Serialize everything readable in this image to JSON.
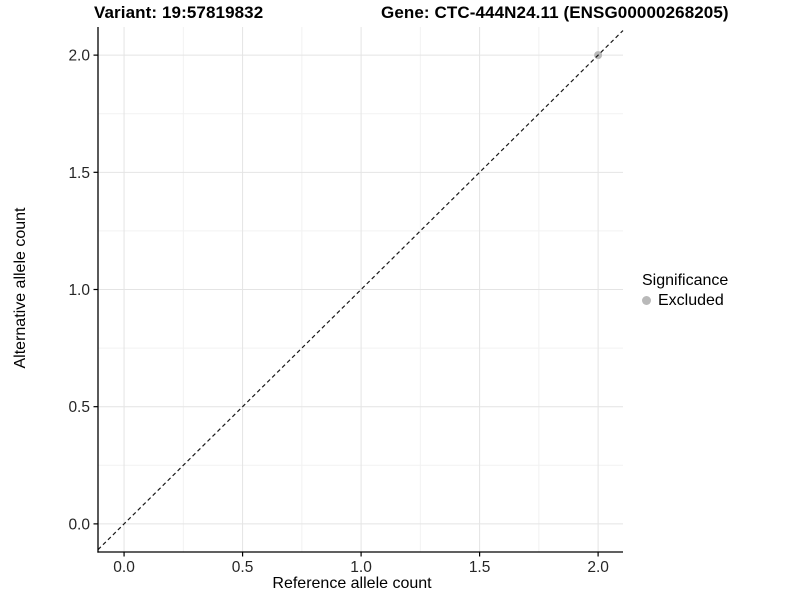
{
  "chart_data": {
    "type": "scatter",
    "title_left": "Variant: 19:57819832",
    "title_right": "Gene: CTC-444N24.11 (ENSG00000268205)",
    "xlabel": "Reference allele count",
    "ylabel": "Alternative allele count",
    "xlim": [
      -0.11,
      2.105
    ],
    "ylim": [
      -0.12,
      2.12
    ],
    "x_ticks": [
      {
        "value": 0.0,
        "label": "0.0"
      },
      {
        "value": 0.5,
        "label": "0.5"
      },
      {
        "value": 1.0,
        "label": "1.0"
      },
      {
        "value": 1.5,
        "label": "1.5"
      },
      {
        "value": 2.0,
        "label": "2.0"
      }
    ],
    "y_ticks": [
      {
        "value": 0.0,
        "label": "0.0"
      },
      {
        "value": 0.5,
        "label": "0.5"
      },
      {
        "value": 1.0,
        "label": "1.0"
      },
      {
        "value": 1.5,
        "label": "1.5"
      },
      {
        "value": 2.0,
        "label": "2.0"
      }
    ],
    "x_minor": [
      0.25,
      0.75,
      1.25,
      1.75
    ],
    "y_minor": [
      0.25,
      0.75,
      1.25,
      1.75
    ],
    "grid": true,
    "legend": {
      "title": "Significance",
      "position": "right",
      "entries": [
        {
          "label": "Excluded",
          "color": "#b9b9b9"
        }
      ]
    },
    "series": [
      {
        "name": "Excluded",
        "color": "#b9b9b9",
        "points": [
          {
            "x": 2,
            "y": 2
          }
        ]
      }
    ],
    "identity_line": {
      "style": "dashed",
      "color": "#1a1a1a",
      "dash": "4 3"
    },
    "colors": {
      "grid_major": "#e4e4e4",
      "grid_minor": "#f2f2f2",
      "axis_line": "#000000",
      "tick_text": "#262626"
    }
  }
}
